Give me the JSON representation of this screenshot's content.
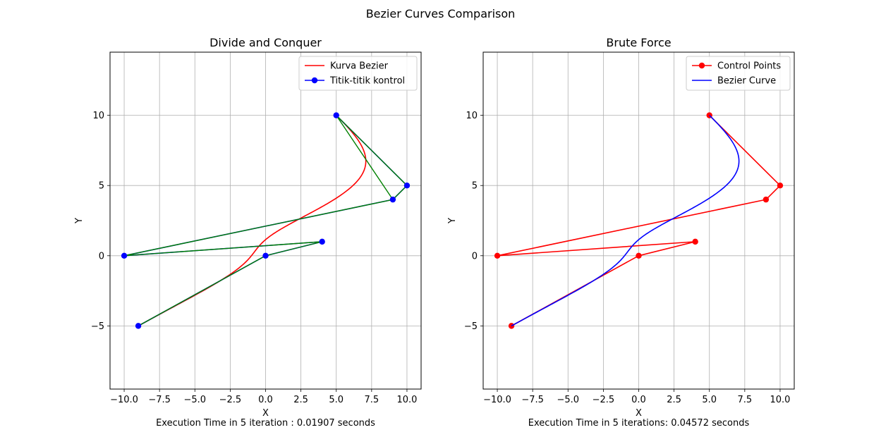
{
  "figure": {
    "suptitle": "Bezier Curves Comparison"
  },
  "chart_data": [
    {
      "type": "line",
      "title": "Divide and Conquer",
      "xlabel": "X",
      "ylabel": "Y",
      "xlim": [
        -11.0,
        11.0
      ],
      "ylim": [
        -9.5,
        14.5
      ],
      "xticks": [
        -10.0,
        -7.5,
        -5.0,
        -2.5,
        0.0,
        2.5,
        5.0,
        7.5,
        10.0
      ],
      "xtick_labels": [
        "−10.0",
        "−7.5",
        "−5.0",
        "−2.5",
        "0.0",
        "2.5",
        "5.0",
        "7.5",
        "10.0"
      ],
      "yticks": [
        -5,
        0,
        5,
        10
      ],
      "ytick_labels": [
        "−5",
        "0",
        "5",
        "10"
      ],
      "grid": true,
      "legend_position": "top-right",
      "footnote": "Execution Time in 5 iteration : 0.01907 seconds",
      "control_points": {
        "x": [
          -9,
          0,
          4,
          -10,
          9,
          10,
          5
        ],
        "y": [
          -5,
          0,
          1,
          0,
          4,
          5,
          10
        ]
      },
      "overlay_path": {
        "x": [
          -9,
          0,
          4,
          -10,
          9,
          10,
          5,
          9,
          -10,
          4,
          0,
          -9
        ],
        "y": [
          -5,
          0,
          1,
          0,
          4,
          5,
          10,
          4,
          0,
          1,
          0,
          -5
        ],
        "color": "#008000"
      },
      "series": [
        {
          "name": "Kurva Bezier",
          "kind": "curve",
          "color": "#ff0000",
          "marker": false
        },
        {
          "name": "Titik-titik kontrol",
          "kind": "control",
          "color": "#0000ff",
          "marker": true
        }
      ]
    },
    {
      "type": "line",
      "title": "Brute Force",
      "xlabel": "X",
      "ylabel": "Y",
      "xlim": [
        -11.0,
        11.0
      ],
      "ylim": [
        -9.5,
        14.5
      ],
      "xticks": [
        -10.0,
        -7.5,
        -5.0,
        -2.5,
        0.0,
        2.5,
        5.0,
        7.5,
        10.0
      ],
      "xtick_labels": [
        "−10.0",
        "−7.5",
        "−5.0",
        "−2.5",
        "0.0",
        "2.5",
        "5.0",
        "7.5",
        "10.0"
      ],
      "yticks": [
        -5,
        0,
        5,
        10
      ],
      "ytick_labels": [
        "−5",
        "0",
        "5",
        "10"
      ],
      "grid": true,
      "legend_position": "top-right",
      "footnote": "Execution Time in 5 iterations: 0.04572 seconds",
      "control_points": {
        "x": [
          -9,
          0,
          4,
          -10,
          9,
          10,
          5
        ],
        "y": [
          -5,
          0,
          1,
          0,
          4,
          5,
          10
        ]
      },
      "series": [
        {
          "name": "Control Points",
          "kind": "control",
          "color": "#ff0000",
          "marker": true
        },
        {
          "name": "Bezier Curve",
          "kind": "curve",
          "color": "#0000ff",
          "marker": false
        }
      ]
    }
  ]
}
